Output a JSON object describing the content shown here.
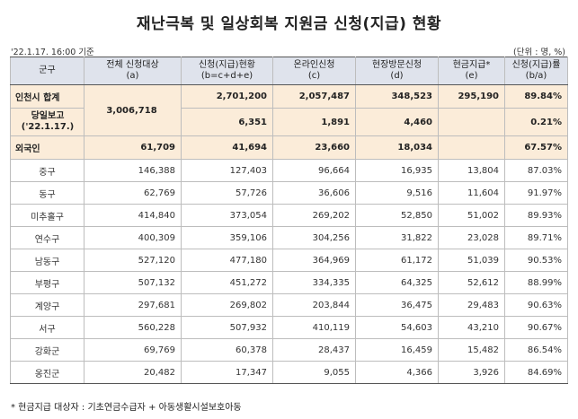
{
  "title": "재난극복 및 일상회복 지원금 신청(지급) 현황",
  "as_of": "'22.1.17. 16:00 기준",
  "unit": "(단위 : 명, %)",
  "headers": [
    {
      "l1": "군구",
      "l2": ""
    },
    {
      "l1": "전체 신청대상",
      "l2": "(a)"
    },
    {
      "l1": "신청(지급)현황",
      "l2": "(b=c+d+e)"
    },
    {
      "l1": "온라인신청",
      "l2": "(c)"
    },
    {
      "l1": "현장방문신청",
      "l2": "(d)"
    },
    {
      "l1": "현금지급*",
      "l2": "(e)"
    },
    {
      "l1": "신청(지급)률",
      "l2": "(b/a)"
    }
  ],
  "summary": {
    "incheon": {
      "gu": "인천시 합계",
      "target": "3,006,718",
      "applied": "2,701,200",
      "online": "2,057,487",
      "visit": "348,523",
      "cash": "295,190",
      "rate": "89.84%"
    },
    "sameday": {
      "gu_l1": "당일보고",
      "gu_l2": "('22.1.17.)",
      "applied": "6,351",
      "online": "1,891",
      "visit": "4,460",
      "cash": "",
      "rate": "0.21%"
    },
    "foreign": {
      "gu": "외국인",
      "target": "61,709",
      "applied": "41,694",
      "online": "23,660",
      "visit": "18,034",
      "cash": "",
      "rate": "67.57%"
    }
  },
  "districts": [
    {
      "gu": "중구",
      "target": "146,388",
      "applied": "127,403",
      "online": "96,664",
      "visit": "16,935",
      "cash": "13,804",
      "rate": "87.03%"
    },
    {
      "gu": "동구",
      "target": "62,769",
      "applied": "57,726",
      "online": "36,606",
      "visit": "9,516",
      "cash": "11,604",
      "rate": "91.97%"
    },
    {
      "gu": "미추홀구",
      "target": "414,840",
      "applied": "373,054",
      "online": "269,202",
      "visit": "52,850",
      "cash": "51,002",
      "rate": "89.93%"
    },
    {
      "gu": "연수구",
      "target": "400,309",
      "applied": "359,106",
      "online": "304,256",
      "visit": "31,822",
      "cash": "23,028",
      "rate": "89.71%"
    },
    {
      "gu": "남동구",
      "target": "527,120",
      "applied": "477,180",
      "online": "364,969",
      "visit": "61,172",
      "cash": "51,039",
      "rate": "90.53%"
    },
    {
      "gu": "부평구",
      "target": "507,132",
      "applied": "451,272",
      "online": "334,335",
      "visit": "64,325",
      "cash": "52,612",
      "rate": "88.99%"
    },
    {
      "gu": "계양구",
      "target": "297,681",
      "applied": "269,802",
      "online": "203,844",
      "visit": "36,475",
      "cash": "29,483",
      "rate": "90.63%"
    },
    {
      "gu": "서구",
      "target": "560,228",
      "applied": "507,932",
      "online": "410,119",
      "visit": "54,603",
      "cash": "43,210",
      "rate": "90.67%"
    },
    {
      "gu": "강화군",
      "target": "69,769",
      "applied": "60,378",
      "online": "28,437",
      "visit": "16,459",
      "cash": "15,482",
      "rate": "86.54%"
    },
    {
      "gu": "옹진군",
      "target": "20,482",
      "applied": "17,347",
      "online": "9,055",
      "visit": "4,366",
      "cash": "3,926",
      "rate": "84.69%"
    }
  ],
  "footnote": "* 현금지급 대상자 : 기초연금수급자 + 아동생활시설보호아동"
}
